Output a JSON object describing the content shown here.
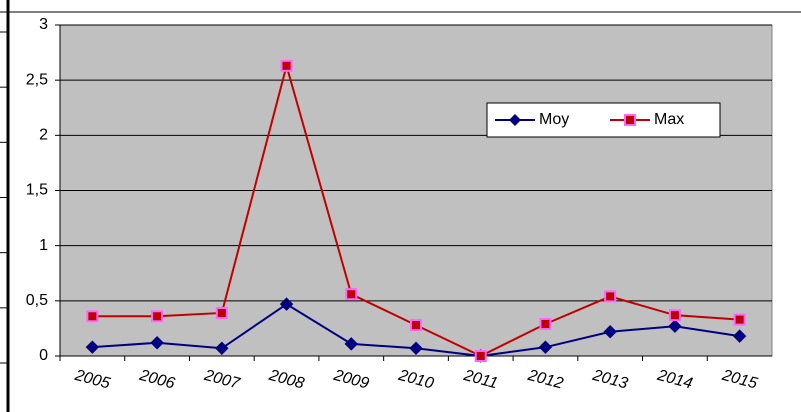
{
  "chart_data": {
    "type": "line",
    "categories": [
      "2005",
      "2006",
      "2007",
      "2008",
      "2009",
      "2010",
      "2011",
      "2012",
      "2013",
      "2014",
      "2015"
    ],
    "series": [
      {
        "name": "Moy",
        "color": "#000080",
        "marker": "diamond",
        "values": [
          0.08,
          0.12,
          0.07,
          0.47,
          0.11,
          0.07,
          0.0,
          0.08,
          0.22,
          0.27,
          0.18
        ]
      },
      {
        "name": "Max",
        "color": "#c00000",
        "marker": "square",
        "values": [
          0.36,
          0.36,
          0.39,
          2.63,
          0.56,
          0.28,
          0.0,
          0.29,
          0.54,
          0.37,
          0.33
        ]
      }
    ],
    "ylim": [
      0,
      3
    ],
    "yticks": [
      0,
      {
        "value": 0.5,
        "label": "0,5"
      },
      1,
      {
        "value": 1.5,
        "label": "1,5"
      },
      2,
      {
        "value": 2.5,
        "label": "2,5"
      },
      3
    ],
    "grid": true
  }
}
